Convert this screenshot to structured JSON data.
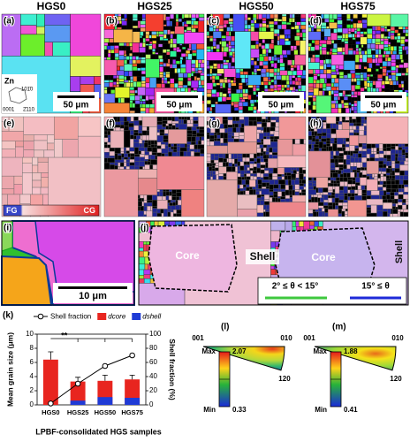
{
  "column_headers": [
    "HGS0",
    "HGS25",
    "HGS50",
    "HGS75"
  ],
  "panel_labels": [
    "(a)",
    "(b)",
    "(c)",
    "(d)",
    "(e)",
    "(f)",
    "(g)",
    "(h)",
    "(i)",
    "(j)",
    "(k)",
    "(l)",
    "(m)"
  ],
  "scale_bar_labels": [
    "50 μm",
    "50 μm",
    "50 μm",
    "50 μm",
    "10 μm"
  ],
  "zn_inset": {
    "element": "Zn",
    "directions": [
      "101̄0",
      "0001",
      "2̄110"
    ]
  },
  "color_key": {
    "left": "FG",
    "right": "CG"
  },
  "region_labels": [
    "Core",
    "Shell",
    "Core",
    "Shell"
  ],
  "boundary_legend": [
    "2° ≤ θ < 15°",
    "15° ≤ θ"
  ],
  "chart_data": {
    "type": "bar",
    "categories": [
      "HGS0",
      "HGS25",
      "HGS50",
      "HGS75"
    ],
    "x_label": "LPBF-consolidated HGS samples",
    "y_label": "Mean grain size (μm)",
    "y2_label": "Shell fraction (%)",
    "ylim": [
      0,
      10
    ],
    "yticks": [
      0,
      2,
      4,
      6,
      8,
      10
    ],
    "y2lim": [
      0,
      100
    ],
    "y2ticks": [
      0,
      20,
      40,
      60,
      80,
      100
    ],
    "annotation": "**",
    "series": [
      {
        "name": "dcore",
        "color": "#e8251f",
        "values": [
          6.4,
          3.3,
          3.4,
          3.6
        ],
        "errors": [
          1.1,
          0.6,
          0.8,
          0.6
        ]
      },
      {
        "name": "dshell",
        "color": "#1f3bd6",
        "values": [
          0,
          0.6,
          1.1,
          1.0
        ]
      },
      {
        "name": "Shell fraction",
        "type": "line",
        "axis": "y2",
        "color": "#000000",
        "values": [
          2,
          30,
          55,
          70
        ]
      }
    ]
  },
  "pole_figures": [
    {
      "directions": [
        "001",
        "010",
        "120"
      ],
      "max_label": "Max",
      "max": "2.07",
      "min_label": "Min",
      "min": "0.33"
    },
    {
      "directions": [
        "001",
        "010",
        "120"
      ],
      "max_label": "Max",
      "max": "1.88",
      "min_label": "Min",
      "min": "0.41"
    }
  ]
}
